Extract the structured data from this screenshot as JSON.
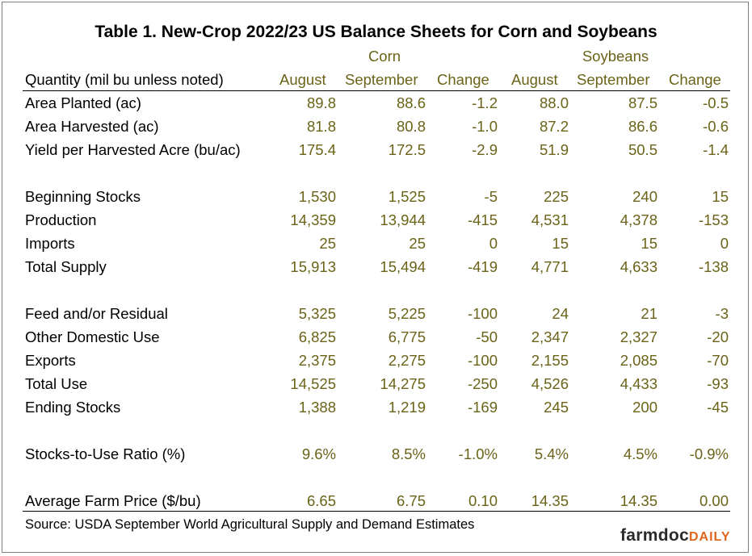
{
  "title": "Table 1. New-Crop 2022/23 US Balance Sheets for Corn and Soybeans",
  "groups": {
    "corn": "Corn",
    "soybeans": "Soybeans"
  },
  "headers": {
    "quantity": "Quantity (mil bu unless noted)",
    "corn_aug": "August",
    "corn_sep": "September",
    "corn_chg": "Change",
    "soy_aug": "August",
    "soy_sep": "September",
    "soy_chg": "Change"
  },
  "rows": [
    {
      "label": "Area Planted (ac)",
      "values": [
        "89.8",
        "88.6",
        "-1.2",
        "88.0",
        "87.5",
        "-0.5"
      ]
    },
    {
      "label": "Area Harvested (ac)",
      "values": [
        "81.8",
        "80.8",
        "-1.0",
        "87.2",
        "86.6",
        "-0.6"
      ]
    },
    {
      "label": "Yield per Harvested Acre (bu/ac)",
      "values": [
        "175.4",
        "172.5",
        "-2.9",
        "51.9",
        "50.5",
        "-1.4"
      ]
    },
    {
      "label": "Beginning Stocks",
      "values": [
        "1,530",
        "1,525",
        "-5",
        "225",
        "240",
        "15"
      ]
    },
    {
      "label": "Production",
      "values": [
        "14,359",
        "13,944",
        "-415",
        "4,531",
        "4,378",
        "-153"
      ]
    },
    {
      "label": "Imports",
      "values": [
        "25",
        "25",
        "0",
        "15",
        "15",
        "0"
      ]
    },
    {
      "label": "Total Supply",
      "values": [
        "15,913",
        "15,494",
        "-419",
        "4,771",
        "4,633",
        "-138"
      ]
    },
    {
      "label": "Feed and/or Residual",
      "values": [
        "5,325",
        "5,225",
        "-100",
        "24",
        "21",
        "-3"
      ]
    },
    {
      "label": "Other Domestic Use",
      "values": [
        "6,825",
        "6,775",
        "-50",
        "2,347",
        "2,327",
        "-20"
      ]
    },
    {
      "label": "Exports",
      "values": [
        "2,375",
        "2,275",
        "-100",
        "2,155",
        "2,085",
        "-70"
      ]
    },
    {
      "label": "Total Use",
      "values": [
        "14,525",
        "14,275",
        "-250",
        "4,526",
        "4,433",
        "-93"
      ]
    },
    {
      "label": "Ending Stocks",
      "values": [
        "1,388",
        "1,219",
        "-169",
        "245",
        "200",
        "-45"
      ]
    },
    {
      "label": "Stocks-to-Use Ratio (%)",
      "values": [
        "9.6%",
        "8.5%",
        "-1.0%",
        "5.4%",
        "4.5%",
        "-0.9%"
      ]
    },
    {
      "label": "Average Farm Price ($/bu)",
      "values": [
        "6.65",
        "6.75",
        "0.10",
        "14.35",
        "14.35",
        "0.00"
      ]
    }
  ],
  "source": "Source: USDA September World Agricultural Supply and Demand Estimates",
  "logo": {
    "main": "farmdoc",
    "accent": "DAILY"
  }
}
